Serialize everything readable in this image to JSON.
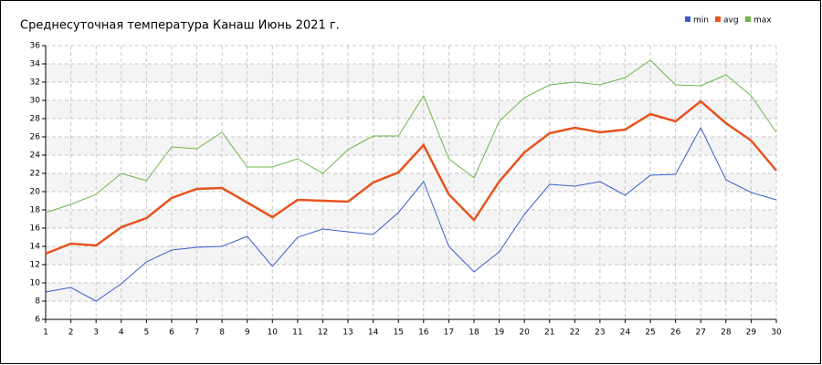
{
  "chart_data": {
    "type": "line",
    "title": "Среднесуточная температура Канаш  Июнь 2021 г.",
    "x": [
      1,
      2,
      3,
      4,
      5,
      6,
      7,
      8,
      9,
      10,
      11,
      12,
      13,
      14,
      15,
      16,
      17,
      18,
      19,
      20,
      21,
      22,
      23,
      24,
      25,
      26,
      27,
      28,
      29,
      30
    ],
    "xlim": [
      1,
      30
    ],
    "xticks": [
      1,
      2,
      3,
      4,
      5,
      6,
      7,
      8,
      9,
      10,
      11,
      12,
      13,
      14,
      15,
      16,
      17,
      18,
      19,
      20,
      21,
      22,
      23,
      24,
      25,
      26,
      27,
      28,
      29,
      30
    ],
    "ylim": [
      6,
      36
    ],
    "yticks": [
      6,
      8,
      10,
      12,
      14,
      16,
      18,
      20,
      22,
      24,
      26,
      28,
      30,
      32,
      34,
      36
    ],
    "grid": true,
    "legend": "top-right",
    "series": [
      {
        "name": "min",
        "color": "#3a5fcd",
        "values": [
          9.0,
          9.5,
          8.0,
          9.9,
          12.3,
          13.6,
          13.9,
          14.0,
          15.1,
          11.8,
          15.0,
          15.9,
          15.6,
          15.3,
          17.7,
          21.1,
          14.0,
          11.2,
          13.4,
          17.5,
          20.8,
          20.6,
          21.1,
          19.6,
          21.8,
          21.9,
          27.0,
          21.3,
          19.9,
          19.1
        ]
      },
      {
        "name": "avg",
        "color": "#e8531f",
        "values": [
          13.2,
          14.3,
          14.1,
          16.1,
          17.1,
          19.3,
          20.3,
          20.4,
          18.8,
          17.2,
          19.1,
          19.0,
          18.9,
          21.0,
          22.1,
          25.1,
          19.7,
          16.9,
          21.1,
          24.3,
          26.4,
          27.0,
          26.5,
          26.8,
          28.5,
          27.7,
          29.9,
          27.5,
          25.6,
          22.3
        ]
      },
      {
        "name": "max",
        "color": "#6ab84a",
        "values": [
          17.7,
          18.6,
          19.7,
          22.0,
          21.2,
          24.9,
          24.7,
          26.5,
          22.7,
          22.7,
          23.6,
          22.0,
          24.6,
          26.1,
          26.1,
          30.5,
          23.6,
          21.5,
          27.7,
          30.3,
          31.7,
          32.0,
          31.7,
          32.5,
          34.4,
          31.7,
          31.6,
          32.8,
          30.5,
          26.5
        ]
      }
    ]
  }
}
